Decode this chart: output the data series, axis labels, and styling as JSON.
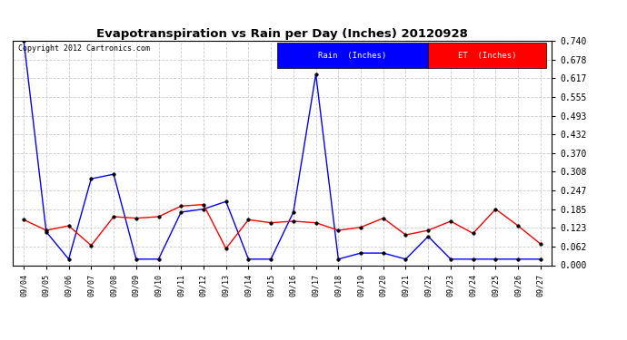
{
  "title": "Evapotranspiration vs Rain per Day (Inches) 20120928",
  "copyright": "Copyright 2012 Cartronics.com",
  "background_color": "#ffffff",
  "plot_bg_color": "#ffffff",
  "grid_color": "#cccccc",
  "x_labels": [
    "09/04",
    "09/05",
    "09/06",
    "09/07",
    "09/08",
    "09/09",
    "09/10",
    "09/11",
    "09/12",
    "09/13",
    "09/14",
    "09/15",
    "09/16",
    "09/17",
    "09/18",
    "09/19",
    "09/20",
    "09/21",
    "09/22",
    "09/23",
    "09/24",
    "09/25",
    "09/26",
    "09/27"
  ],
  "rain_data": [
    0.74,
    0.11,
    0.02,
    0.285,
    0.3,
    0.02,
    0.02,
    0.175,
    0.185,
    0.21,
    0.02,
    0.02,
    0.175,
    0.63,
    0.02,
    0.04,
    0.04,
    0.02,
    0.095,
    0.02,
    0.02,
    0.02,
    0.02,
    0.02
  ],
  "et_data": [
    0.15,
    0.115,
    0.13,
    0.065,
    0.16,
    0.155,
    0.16,
    0.195,
    0.2,
    0.055,
    0.15,
    0.14,
    0.145,
    0.14,
    0.115,
    0.125,
    0.155,
    0.1,
    0.115,
    0.145,
    0.105,
    0.185,
    0.13,
    0.07
  ],
  "rain_color": "#0000ff",
  "et_color": "#ff0000",
  "y_ticks": [
    0.0,
    0.062,
    0.123,
    0.185,
    0.247,
    0.308,
    0.37,
    0.432,
    0.493,
    0.555,
    0.617,
    0.678,
    0.74
  ],
  "ylim": [
    0.0,
    0.74
  ],
  "legend_rain_bg": "#0000ff",
  "legend_et_bg": "#ff0000",
  "legend_rain_label": "Rain  (Inches)",
  "legend_et_label": "ET  (Inches)"
}
